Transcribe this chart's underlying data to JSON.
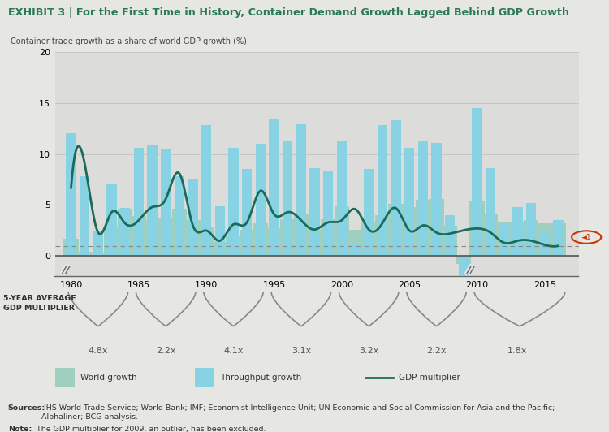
{
  "title_exhibit": "EXHIBIT 3 | For the First Time in History, Container Demand Growth Lagged Behind GDP Growth",
  "ylabel": "Container trade growth as a share of world GDP growth (%)",
  "background_color": "#e6e6e3",
  "plot_bg_color": "#dcdcda",
  "years": [
    1980,
    1981,
    1982,
    1983,
    1984,
    1985,
    1986,
    1987,
    1988,
    1989,
    1990,
    1991,
    1992,
    1993,
    1994,
    1995,
    1996,
    1997,
    1998,
    1999,
    2000,
    2001,
    2002,
    2003,
    2004,
    2005,
    2006,
    2007,
    2008,
    2009,
    2010,
    2011,
    2012,
    2013,
    2014,
    2015,
    2016
  ],
  "world_growth": [
    1.7,
    0.4,
    0.3,
    2.8,
    4.6,
    3.9,
    3.5,
    3.7,
    4.6,
    3.5,
    2.8,
    1.4,
    1.9,
    2.6,
    3.2,
    2.7,
    3.6,
    4.2,
    2.6,
    3.6,
    4.9,
    2.6,
    3.3,
    4.0,
    5.1,
    4.8,
    5.5,
    5.6,
    3.0,
    -0.8,
    5.4,
    4.1,
    3.4,
    3.4,
    3.5,
    3.2,
    3.2
  ],
  "throughput_growth": [
    12.0,
    7.8,
    2.5,
    7.0,
    4.7,
    10.6,
    10.9,
    10.5,
    7.8,
    7.5,
    12.8,
    4.9,
    10.6,
    8.5,
    11.0,
    13.5,
    11.2,
    12.9,
    8.6,
    8.3,
    11.2,
    1.2,
    8.5,
    12.8,
    13.3,
    10.6,
    11.2,
    11.1,
    4.0,
    -9.0,
    14.5,
    8.6,
    3.1,
    4.8,
    5.2,
    2.3,
    3.5
  ],
  "gdp_multiplier": [
    6.7,
    9.1,
    2.3,
    4.3,
    3.2,
    3.5,
    4.8,
    5.6,
    8.1,
    3.0,
    2.5,
    1.5,
    3.1,
    3.3,
    6.4,
    4.1,
    4.3,
    3.5,
    2.6,
    3.3,
    3.5,
    4.6,
    2.6,
    3.2,
    4.7,
    2.5,
    3.0,
    2.3,
    2.2,
    null,
    2.7,
    2.3,
    1.3,
    1.5,
    1.5,
    1.1,
    1.0
  ],
  "dashed_line_y": 1.0,
  "ylim": [
    -2,
    20
  ],
  "yticks": [
    0,
    5,
    10,
    15,
    20
  ],
  "xlim_min": 1978.8,
  "xlim_max": 2017.5,
  "period_labels": [
    {
      "x_center": 1982,
      "label": "4.8x",
      "x_start": 1979.8,
      "x_end": 1984.2
    },
    {
      "x_center": 1987,
      "label": "2.2x",
      "x_start": 1984.8,
      "x_end": 1989.2
    },
    {
      "x_center": 1992,
      "label": "4.1x",
      "x_start": 1989.8,
      "x_end": 1994.2
    },
    {
      "x_center": 1997,
      "label": "3.1x",
      "x_start": 1994.8,
      "x_end": 1999.2
    },
    {
      "x_center": 2002,
      "label": "3.2x",
      "x_start": 1999.8,
      "x_end": 2004.2
    },
    {
      "x_center": 2007,
      "label": "2.2x",
      "x_start": 2004.8,
      "x_end": 2009.2
    },
    {
      "x_center": 2013,
      "label": "1.8x",
      "x_start": 2009.8,
      "x_end": 2016.5
    }
  ],
  "world_color": "#9ecfbf",
  "throughput_color": "#87d3e3",
  "line_color": "#1a6b5a",
  "bar_width": 0.75,
  "sources_text": " IHS World Trade Service; World Bank; IMF; Economist Intelligence Unit; UN Economic and Social Commission for Asia and the Pacific;\nAlphaliner; BCG analysis.",
  "sources_bold": "Sources:",
  "note_text": " The GDP multiplier for 2009, an outlier, has been excluded.",
  "note_bold": "Note:"
}
